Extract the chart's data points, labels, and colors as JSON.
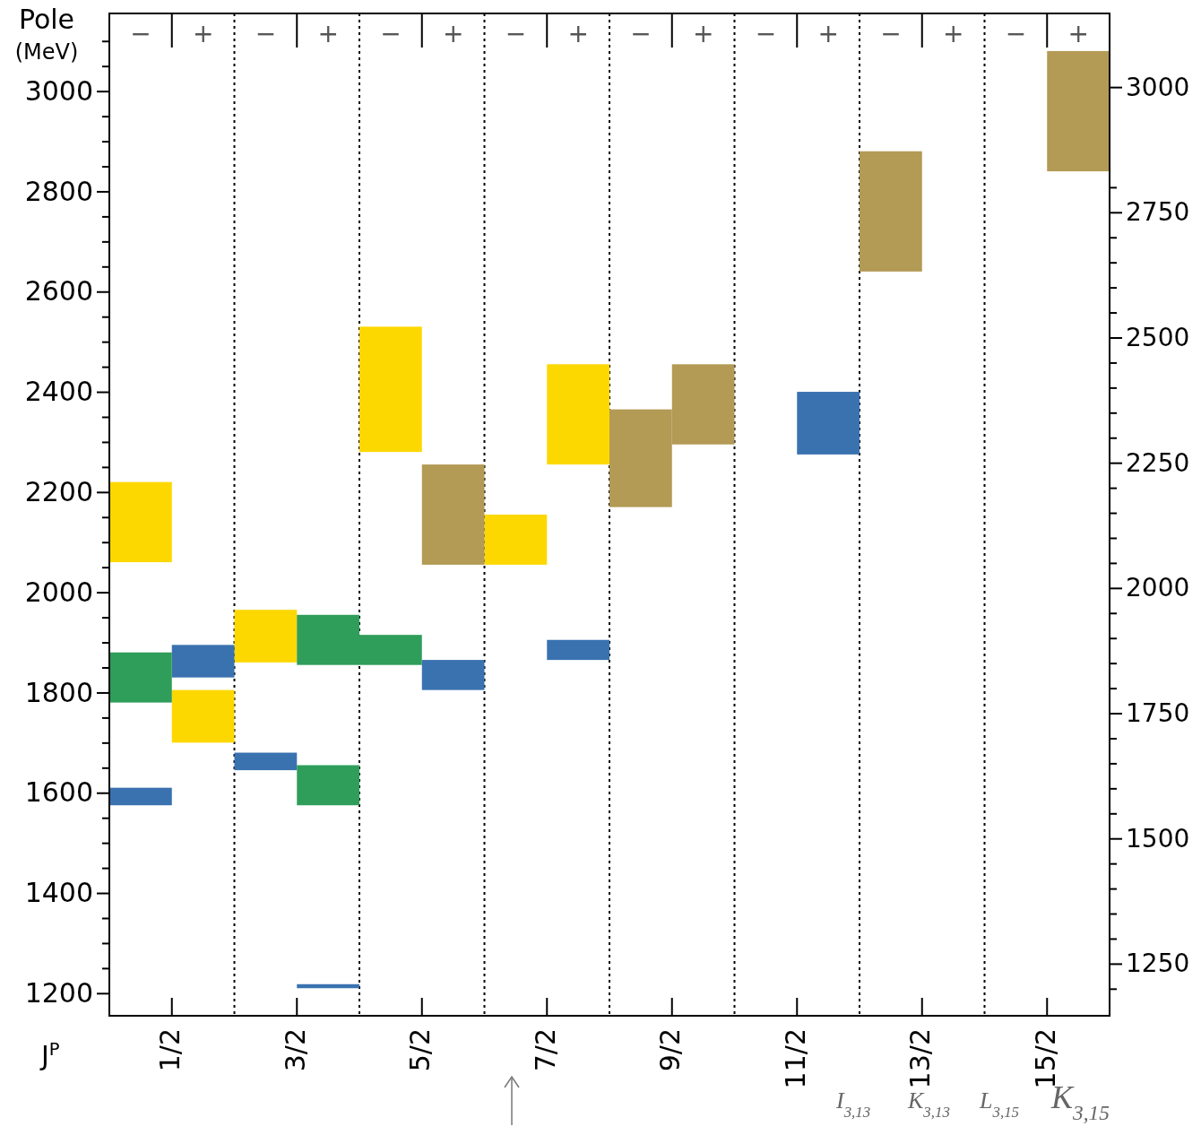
{
  "chart_data": {
    "type": "bar",
    "xlabel": "J$^{P}$",
    "ylabel": "Pole (MeV)",
    "xlim": [
      0,
      8
    ],
    "xticks": [
      {
        "value": 0.5,
        "label": "1/2"
      },
      {
        "value": 1.5,
        "label": "3/2"
      },
      {
        "value": 2.5,
        "label": "5/2"
      },
      {
        "value": 3.5,
        "label": "7/2"
      },
      {
        "value": 4.5,
        "label": "9/2"
      },
      {
        "value": 5.5,
        "label": "11/2"
      },
      {
        "value": 6.5,
        "label": "13/2"
      },
      {
        "value": 7.5,
        "label": "15/2"
      }
    ],
    "ylim": [
      1155,
      3155
    ],
    "yticks": [
      1200,
      {
        "value": 1250,
        "label": null
      },
      {
        "value": 1300,
        "label": null
      },
      {
        "value": 1350,
        "label": null
      },
      1400,
      {
        "value": 1450,
        "label": null
      },
      {
        "value": 1500,
        "label": null
      },
      {
        "value": 1550,
        "label": null
      },
      1600,
      {
        "value": 1650,
        "label": null
      },
      {
        "value": 1700,
        "label": null
      },
      {
        "value": 1750,
        "label": null
      },
      1800,
      {
        "value": 1850,
        "label": null
      },
      {
        "value": 1900,
        "label": null
      },
      {
        "value": 1950,
        "label": null
      },
      2000,
      {
        "value": 2050,
        "label": null
      },
      {
        "value": 2100,
        "label": null
      },
      {
        "value": 2150,
        "label": null
      },
      2200,
      {
        "value": 2250,
        "label": null
      },
      {
        "value": 2300,
        "label": null
      },
      {
        "value": 2350,
        "label": null
      },
      2400,
      {
        "value": 2450,
        "label": null
      },
      {
        "value": 2500,
        "label": null
      },
      {
        "value": 2550,
        "label": null
      },
      2600,
      {
        "value": 2650,
        "label": null
      },
      {
        "value": 2700,
        "label": null
      },
      {
        "value": 2750,
        "label": null
      },
      2800,
      {
        "value": 2850,
        "label": null
      },
      {
        "value": 2900,
        "label": null
      },
      {
        "value": 2950,
        "label": null
      },
      3000,
      {
        "value": 3050,
        "label": null
      },
      {
        "value": 3100,
        "label": null
      }
    ],
    "y2lim": [
      1146,
      3147
    ],
    "y2ticks": [
      {
        "value": 1200,
        "label": null
      },
      1250,
      {
        "value": 1300,
        "label": null
      },
      {
        "value": 1350,
        "label": null
      },
      {
        "value": 1400,
        "label": null
      },
      {
        "value": 1450,
        "label": null
      },
      1500,
      {
        "value": 1550,
        "label": null
      },
      {
        "value": 1600,
        "label": null
      },
      {
        "value": 1650,
        "label": null
      },
      {
        "value": 1700,
        "label": null
      },
      1750,
      {
        "value": 1800,
        "label": null
      },
      {
        "value": 1850,
        "label": null
      },
      {
        "value": 1900,
        "label": null
      },
      {
        "value": 1950,
        "label": null
      },
      2000,
      {
        "value": 2050,
        "label": null
      },
      {
        "value": 2100,
        "label": null
      },
      {
        "value": 2150,
        "label": null
      },
      {
        "value": 2200,
        "label": null
      },
      2250,
      {
        "value": 2300,
        "label": null
      },
      {
        "value": 2350,
        "label": null
      },
      {
        "value": 2400,
        "label": null
      },
      {
        "value": 2450,
        "label": null
      },
      2500,
      {
        "value": 2550,
        "label": null
      },
      {
        "value": 2600,
        "label": null
      },
      {
        "value": 2650,
        "label": null
      },
      {
        "value": 2700,
        "label": null
      },
      2750,
      {
        "value": 2800,
        "label": null
      },
      3000
    ],
    "series": [
      {
        "color": "#fdd800",
        "x": [
          0.25,
          0.75,
          1.25,
          2.25,
          3.25,
          3.75
        ],
        "base": [
          2060,
          1700,
          1860,
          2280,
          2055,
          2255
        ],
        "values": [
          160,
          105,
          105,
          250,
          100,
          200
        ]
      },
      {
        "color": "#3a72b0",
        "x": [
          0.25,
          0.75,
          1.25,
          1.75,
          2.75,
          3.75,
          5.75
        ],
        "base": [
          1575,
          1830,
          1645,
          1210,
          1805,
          1865,
          2275
        ],
        "values": [
          35,
          65,
          35,
          8,
          60,
          40,
          125
        ]
      },
      {
        "color": "#2f9e5a",
        "x": [
          0.25,
          1.75,
          2.25
        ],
        "base": [
          1780,
          1855,
          1855
        ],
        "values": [
          100,
          100,
          60
        ]
      },
      {
        "color": "#2f9e5a",
        "x": [
          1.75
        ],
        "base": [
          1575
        ],
        "values": [
          80
        ]
      },
      {
        "color": "#b39a55",
        "x": [
          2.75,
          4.25,
          4.75,
          6.25,
          7.75
        ],
        "base": [
          2055,
          2170,
          2295,
          2640,
          2840
        ],
        "values": [
          200,
          195,
          160,
          240,
          240
        ]
      }
    ],
    "ref_lines": [
      {
        "axis": "x",
        "value": 1,
        "line_style": "dotted"
      },
      {
        "axis": "x",
        "value": 2,
        "line_style": "dotted"
      },
      {
        "axis": "x",
        "value": 3,
        "line_style": "dotted"
      },
      {
        "axis": "x",
        "value": 4,
        "line_style": "dotted"
      },
      {
        "axis": "x",
        "value": 5,
        "line_style": "dotted"
      },
      {
        "axis": "x",
        "value": 6,
        "line_style": "dotted"
      },
      {
        "axis": "x",
        "value": 7,
        "line_style": "dotted"
      }
    ],
    "annotations": [
      "−",
      "+",
      "−",
      "+",
      "−",
      "+",
      "−",
      "+",
      "−",
      "+",
      "−",
      "+",
      "−",
      "+",
      "−",
      "+",
      "I$_{3,13}$",
      "K$_{3,13}$",
      "L$_{3,15}$",
      "K$_{3,15}$"
    ]
  }
}
